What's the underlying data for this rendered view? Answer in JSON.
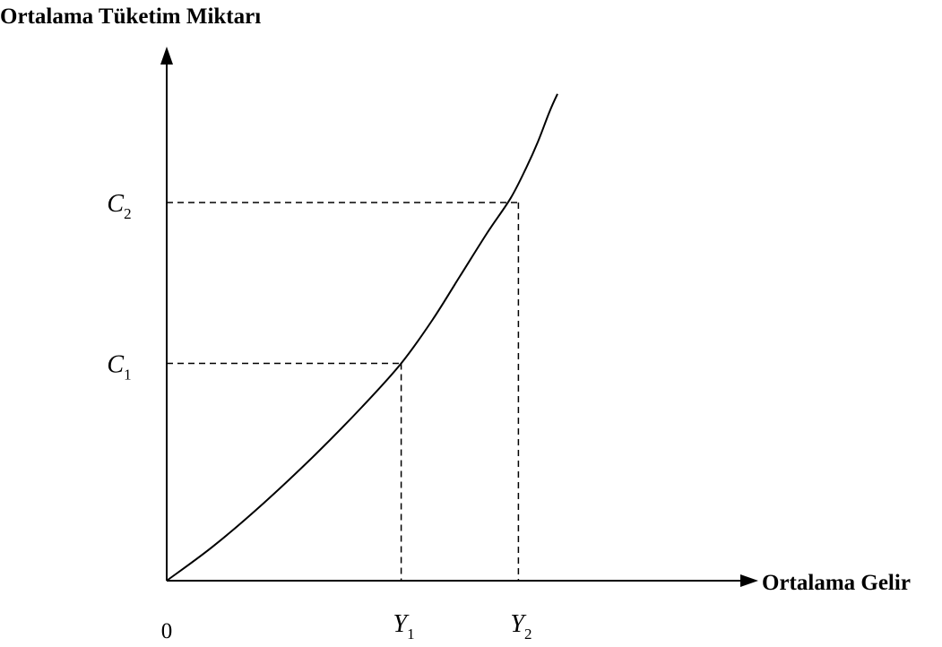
{
  "chart_data": {
    "type": "line",
    "ylabel": "Ortalama Tüketim Miktarı",
    "xlabel": "Ortalama Gelir",
    "origin_label": "0",
    "x_ticks": [
      {
        "symbol": "Y",
        "sub": "1"
      },
      {
        "symbol": "Y",
        "sub": "2"
      }
    ],
    "y_ticks": [
      {
        "symbol": "C",
        "sub": "1"
      },
      {
        "symbol": "C",
        "sub": "2"
      }
    ],
    "reference_points": [
      {
        "x_label": "Y1",
        "y_label": "C1",
        "x": 0.6,
        "y": 0.5
      },
      {
        "x_label": "Y2",
        "y_label": "C2",
        "x": 0.9,
        "y": 0.87
      }
    ],
    "series": [
      {
        "x": [
          0,
          0.12,
          0.25,
          0.38,
          0.5,
          0.6,
          0.68,
          0.75,
          0.82,
          0.88,
          0.92,
          0.95,
          0.98,
          1.0
        ],
        "y": [
          0,
          0.08,
          0.18,
          0.29,
          0.4,
          0.5,
          0.6,
          0.7,
          0.8,
          0.88,
          0.95,
          1.01,
          1.08,
          1.12
        ]
      }
    ],
    "xlim": [
      0,
      1.2
    ],
    "ylim": [
      0,
      1.2
    ],
    "grid": false,
    "legend": "none",
    "line_color": "#000000"
  }
}
